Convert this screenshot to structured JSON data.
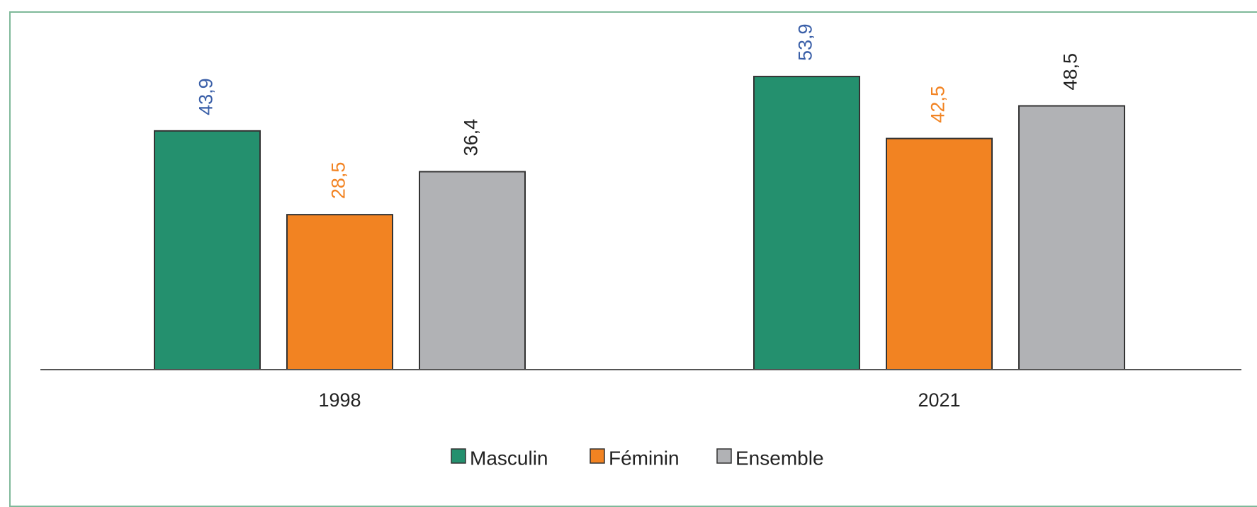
{
  "chart_data": {
    "type": "bar",
    "categories": [
      "1998",
      "2021"
    ],
    "series": [
      {
        "name": "Masculin",
        "values": [
          43.9,
          53.9
        ],
        "value_labels": [
          "43,9",
          "53,9"
        ],
        "color": "#24906e",
        "label_color": "#3a5fa8"
      },
      {
        "name": "Féminin",
        "values": [
          28.5,
          42.5
        ],
        "value_labels": [
          "28,5",
          "42,5"
        ],
        "color": "#f28322",
        "label_color": "#f28322"
      },
      {
        "name": "Ensemble",
        "values": [
          36.4,
          48.5
        ],
        "value_labels": [
          "36,4",
          "48,5"
        ],
        "color": "#b1b2b5",
        "label_color": "#222222"
      }
    ],
    "title": "",
    "xlabel": "",
    "ylabel": "",
    "ylim": [
      0,
      60
    ],
    "grid": false,
    "legend_position": "bottom",
    "frame_color": "#7fb99a",
    "axis_color": "#555555"
  }
}
